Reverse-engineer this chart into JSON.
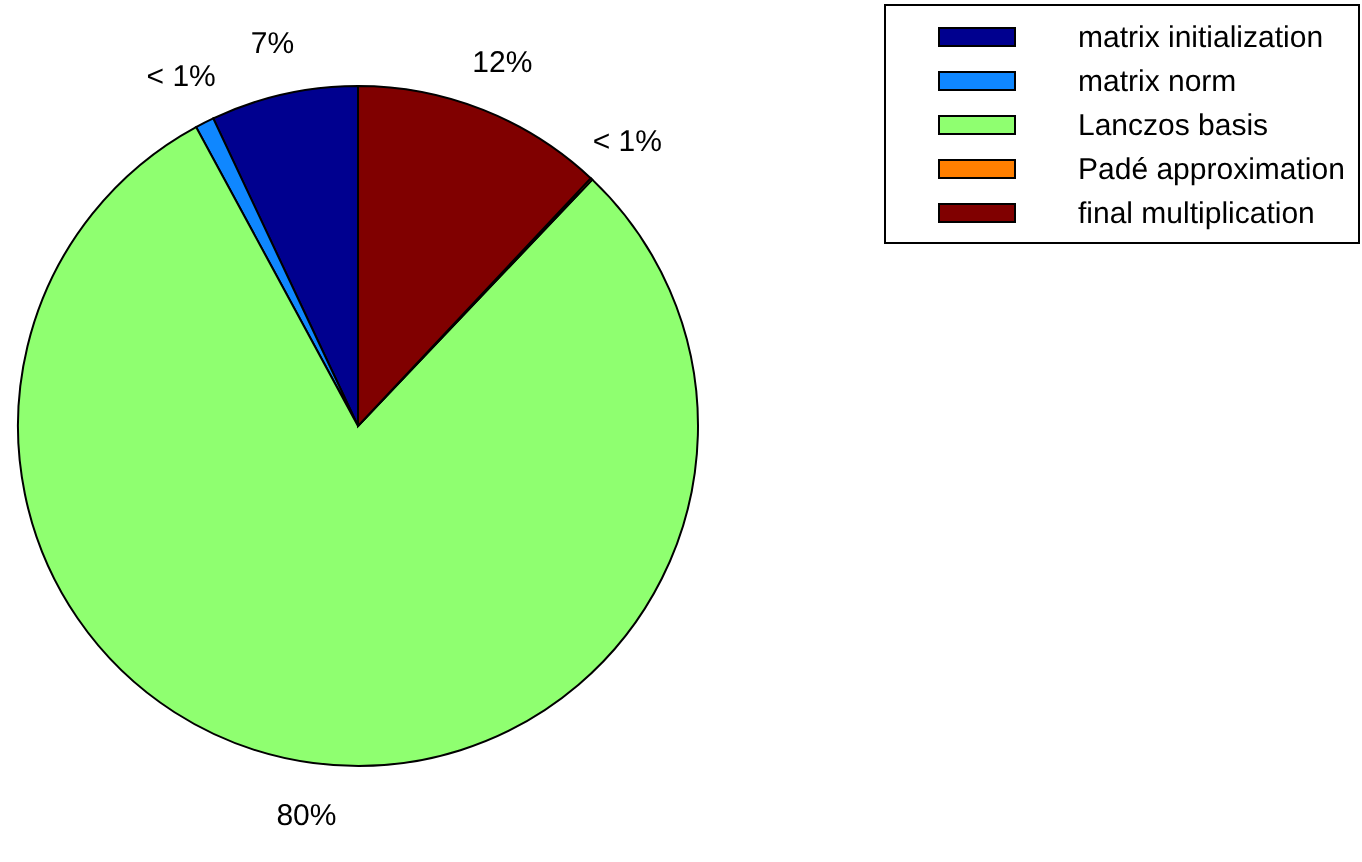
{
  "chart_data": {
    "type": "pie",
    "categories": [
      "matrix initialization",
      "matrix norm",
      "Lanczos basis",
      "Padé approximation",
      "final multiplication"
    ],
    "values": [
      7,
      0.9,
      80,
      0.1,
      12
    ],
    "value_labels": [
      "7%",
      "< 1%",
      "80%",
      "< 1%",
      "12%"
    ],
    "colors": [
      "#00008f",
      "#0f87ff",
      "#8fff70",
      "#ff7f00",
      "#800000"
    ],
    "legend": "top right"
  }
}
